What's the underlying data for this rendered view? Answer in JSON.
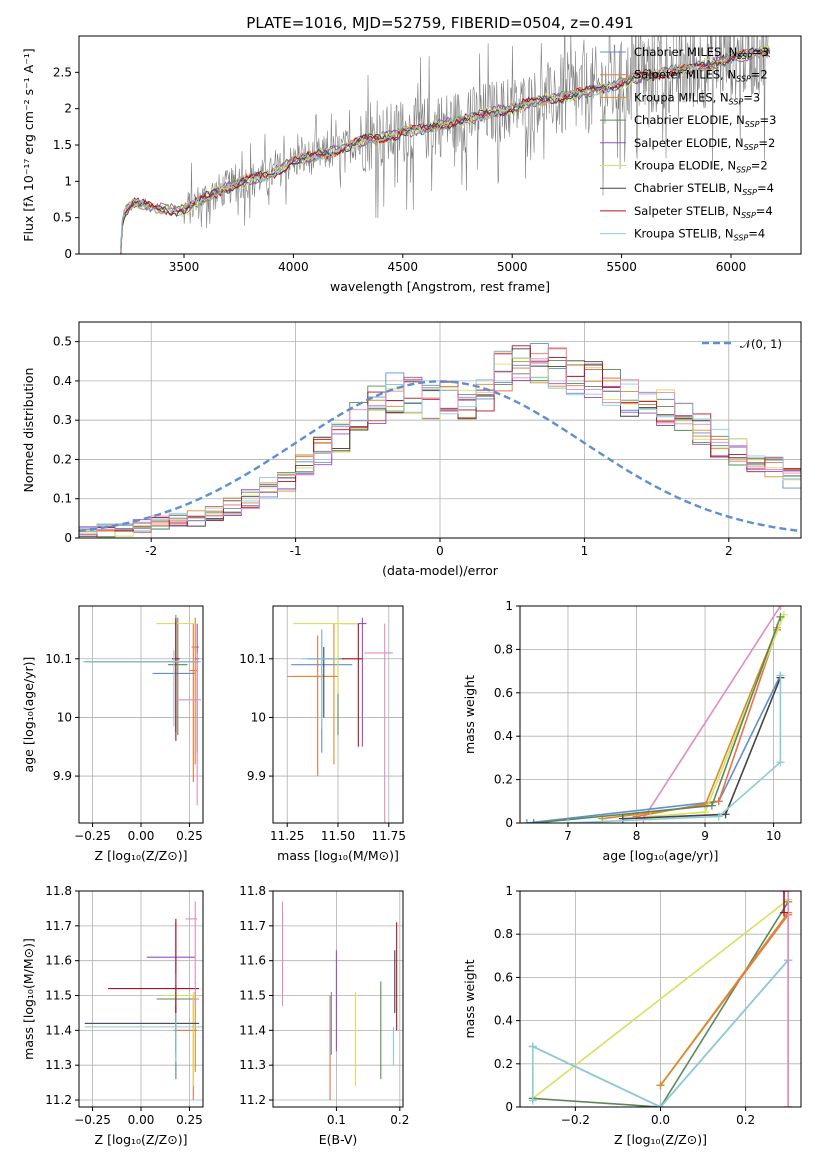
{
  "chart_data": [
    {
      "id": "spectrum",
      "type": "line",
      "title": "PLATE=1016, MJD=52759, FIBERID=0504, z=0.491",
      "xlabel": "wavelength [Angstrom, rest frame]",
      "ylabel": "Flux [fλ 10⁻¹⁷ erg cm⁻² s⁻¹ A⁻¹]",
      "xlim": [
        3020,
        6320
      ],
      "ylim": [
        0,
        3.0
      ],
      "xticks": [
        3500,
        4000,
        4500,
        5000,
        5500,
        6000
      ],
      "yticks": [
        0.0,
        0.5,
        1.0,
        1.5,
        2.0,
        2.5
      ],
      "grid": false,
      "legend_position": "top-right",
      "data_spectrum_color": "#808080",
      "series": [
        {
          "name": "Chabrier MILES, N_SSP=3",
          "color": "#5f8fd0"
        },
        {
          "name": "Salpeter MILES, N_SSP=2",
          "color": "#e8734a"
        },
        {
          "name": "Kroupa MILES, N_SSP=3",
          "color": "#d98c2b"
        },
        {
          "name": "Chabrier ELODIE, N_SSP=3",
          "color": "#5a8a5a"
        },
        {
          "name": "Salpeter ELODIE, N_SSP=2",
          "color": "#9b4fc0"
        },
        {
          "name": "Kroupa ELODIE, N_SSP=2",
          "color": "#d8e060"
        },
        {
          "name": "Chabrier STELIB, N_SSP=4",
          "color": "#444444"
        },
        {
          "name": "Salpeter STELIB, N_SSP=4",
          "color": "#b01020"
        },
        {
          "name": "Kroupa STELIB, N_SSP=4",
          "color": "#8ccbd8"
        }
      ],
      "continuum": {
        "x": [
          3210,
          3220,
          3240,
          3270,
          3300,
          3400,
          3500,
          3600,
          3700,
          3800,
          3900,
          4000,
          4100,
          4200,
          4300,
          4400,
          4500,
          4600,
          4700,
          4800,
          4900,
          5000,
          5100,
          5200,
          5300,
          5400,
          5500,
          5600,
          5700,
          5800,
          5900,
          6000,
          6100,
          6180
        ],
        "y": [
          0.02,
          0.5,
          0.62,
          0.7,
          0.68,
          0.62,
          0.6,
          0.78,
          0.92,
          1.02,
          1.1,
          1.28,
          1.35,
          1.42,
          1.55,
          1.6,
          1.68,
          1.72,
          1.8,
          1.85,
          1.95,
          2.0,
          2.1,
          2.15,
          2.2,
          2.28,
          2.35,
          2.45,
          2.5,
          2.55,
          2.6,
          2.7,
          2.75,
          2.8
        ]
      }
    },
    {
      "id": "residuals",
      "type": "histogram",
      "xlabel": "(data-model)/error",
      "ylabel": "Normed distribution",
      "xlim": [
        -2.5,
        2.5
      ],
      "ylim": [
        0,
        0.55
      ],
      "xticks": [
        -2,
        -1,
        0,
        1,
        2
      ],
      "yticks": [
        0.0,
        0.1,
        0.2,
        0.3,
        0.4,
        0.5
      ],
      "grid": true,
      "legend": "𝒩(0, 1)",
      "legend_position": "top-right",
      "gaussian": {
        "mean": 0,
        "sigma": 1,
        "color": "#5f8fd0"
      },
      "bin_width": 0.125,
      "base_histogram": [
        0.02,
        0.02,
        0.02,
        0.03,
        0.04,
        0.05,
        0.05,
        0.06,
        0.08,
        0.1,
        0.13,
        0.14,
        0.18,
        0.22,
        0.26,
        0.3,
        0.34,
        0.37,
        0.36,
        0.34,
        0.35,
        0.33,
        0.36,
        0.42,
        0.45,
        0.44,
        0.43,
        0.41,
        0.4,
        0.38,
        0.36,
        0.35,
        0.33,
        0.3,
        0.28,
        0.24,
        0.22,
        0.2,
        0.18,
        0.15,
        0.13,
        0.11,
        0.09,
        0.08,
        0.07,
        0.06,
        0.05,
        0.05,
        0.04,
        0.03
      ]
    },
    {
      "id": "age-vs-Z",
      "type": "errorbar",
      "xlabel": "Z [log₁₀(Z/Z⊙)]",
      "ylabel": "age  [log₁₀(age/yr)]",
      "xlim": [
        -0.32,
        0.32
      ],
      "ylim": [
        9.82,
        10.19
      ],
      "xticks": [
        -0.25,
        0.0,
        0.25
      ],
      "xticklabels": [
        "−0.25",
        "0.00",
        "0.25"
      ],
      "yticks": [
        9.9,
        10.0,
        10.1
      ],
      "grid": true,
      "points": [
        {
          "x": 0.18,
          "y": 10.075,
          "xerr": [
            0.12,
            0.1
          ],
          "yerr": [
            0.1,
            0.1
          ],
          "color": "#5f8fd0"
        },
        {
          "x": 0.27,
          "y": 10.08,
          "xerr": [
            0.02,
            0.02
          ],
          "yerr": [
            0.19,
            0.08
          ],
          "color": "#e8734a"
        },
        {
          "x": 0.28,
          "y": 10.12,
          "xerr": [
            0.02,
            0.02
          ],
          "yerr": [
            0.2,
            0.05
          ],
          "color": "#d98c2b"
        },
        {
          "x": 0.19,
          "y": 10.09,
          "xerr": [
            0.05,
            0.05
          ],
          "yerr": [
            0.12,
            0.08
          ],
          "color": "#5a8a5a"
        },
        {
          "x": 0.29,
          "y": 10.1,
          "xerr": [
            0.01,
            0.01
          ],
          "yerr": [
            0.16,
            0.06
          ],
          "color": "#9b4fc0"
        },
        {
          "x": 0.18,
          "y": 10.16,
          "xerr": [
            0.1,
            0.1
          ],
          "yerr": [
            0.05,
            0.01
          ],
          "color": "#d8e060"
        },
        {
          "x": 0.18,
          "y": 10.095,
          "xerr": [
            0.47,
            0.12
          ],
          "yerr": [
            0.12,
            0.07
          ],
          "color": "#444444"
        },
        {
          "x": 0.18,
          "y": 10.1,
          "xerr": [
            0.02,
            0.02
          ],
          "yerr": [
            0.14,
            0.07
          ],
          "color": "#b01020"
        },
        {
          "x": 0.17,
          "y": 10.095,
          "xerr": [
            0.47,
            0.14
          ],
          "yerr": [
            0.11,
            0.02
          ],
          "color": "#8ccbd8"
        },
        {
          "x": 0.29,
          "y": 10.03,
          "xerr": [
            0.1,
            0.02
          ],
          "yerr": [
            0.18,
            0.08
          ],
          "color": "#e38bc0"
        }
      ]
    },
    {
      "id": "age-vs-mass",
      "type": "errorbar",
      "xlabel": "mass [log₁₀(M/M⊙)]",
      "xlim": [
        11.18,
        11.82
      ],
      "ylim": [
        9.82,
        10.19
      ],
      "xticks": [
        11.25,
        11.5,
        11.75
      ],
      "xticklabels": [
        "11.25",
        "11.50",
        "11.75"
      ],
      "yticks": [
        9.9,
        10.0,
        10.1
      ],
      "grid": true,
      "points": [
        {
          "x": 11.42,
          "y": 10.09,
          "xerr": [
            0.15,
            0.15
          ],
          "yerr": [
            0.15,
            0.06
          ],
          "color": "#5f8fd0"
        },
        {
          "x": 11.4,
          "y": 10.07,
          "xerr": [
            0.15,
            0.1
          ],
          "yerr": [
            0.17,
            0.07
          ],
          "color": "#e8734a"
        },
        {
          "x": 11.48,
          "y": 10.07,
          "xerr": [
            0.2,
            0.02
          ],
          "yerr": [
            0.15,
            0.09
          ],
          "color": "#d98c2b"
        },
        {
          "x": 11.5,
          "y": 10.1,
          "xerr": [
            0.03,
            0.03
          ],
          "yerr": [
            0.13,
            0.06
          ],
          "color": "#5a8a5a"
        },
        {
          "x": 11.62,
          "y": 10.16,
          "xerr": [
            0.1,
            0.02
          ],
          "yerr": [
            0.21,
            0.01
          ],
          "color": "#9b4fc0"
        },
        {
          "x": 11.5,
          "y": 10.16,
          "xerr": [
            0.22,
            0.1
          ],
          "yerr": [
            0.12,
            0.01
          ],
          "color": "#d8e060"
        },
        {
          "x": 11.43,
          "y": 10.1,
          "xerr": [
            0.08,
            0.05
          ],
          "yerr": [
            0.1,
            0.02
          ],
          "color": "#444444"
        },
        {
          "x": 11.6,
          "y": 10.1,
          "xerr": [
            0.08,
            0.02
          ],
          "yerr": [
            0.15,
            0.06
          ],
          "color": "#b01020"
        },
        {
          "x": 11.42,
          "y": 10.1,
          "xerr": [
            0.1,
            0.08
          ],
          "yerr": [
            0.12,
            0.05
          ],
          "color": "#8ccbd8"
        },
        {
          "x": 11.73,
          "y": 10.11,
          "xerr": [
            0.1,
            0.04
          ],
          "yerr": [
            0.29,
            0.05
          ],
          "color": "#e38bc0"
        }
      ]
    },
    {
      "id": "weight-vs-age",
      "type": "line",
      "xlabel": "age  [log₁₀(age/yr)]",
      "ylabel": "mass weight",
      "xlim": [
        6.3,
        10.4
      ],
      "ylim": [
        0,
        1.0
      ],
      "xticks": [
        7,
        8,
        9,
        10
      ],
      "yticks": [
        0.0,
        0.2,
        0.4,
        0.6,
        0.8,
        1.0
      ],
      "grid": true,
      "series": [
        {
          "color": "#e38bc0",
          "x": [
            8.1,
            10.1
          ],
          "y": [
            0.02,
            1.0
          ]
        },
        {
          "color": "#5f8fd0",
          "x": [
            6.4,
            9.2,
            10.1
          ],
          "y": [
            0.0,
            0.1,
            0.68
          ]
        },
        {
          "color": "#e8734a",
          "x": [
            8.0,
            9.2,
            10.05
          ],
          "y": [
            0.03,
            0.1,
            0.89
          ]
        },
        {
          "color": "#d98c2b",
          "x": [
            7.5,
            9.0,
            10.05
          ],
          "y": [
            0.02,
            0.08,
            0.9
          ]
        },
        {
          "color": "#d8e060",
          "x": [
            8.2,
            9.0,
            10.15
          ],
          "y": [
            0.03,
            0.05,
            0.96
          ]
        },
        {
          "color": "#5a8a5a",
          "x": [
            6.5,
            9.1,
            10.1
          ],
          "y": [
            0.0,
            0.08,
            0.95
          ]
        },
        {
          "color": "#444444",
          "x": [
            7.8,
            9.3,
            10.1
          ],
          "y": [
            0.02,
            0.04,
            0.67
          ]
        },
        {
          "color": "#8ccbd8",
          "x": [
            7.0,
            9.2,
            10.1,
            10.1
          ],
          "y": [
            0.0,
            0.03,
            0.28,
            0.68
          ]
        }
      ]
    },
    {
      "id": "mass-vs-Z",
      "type": "errorbar",
      "xlabel": "Z [log₁₀(Z/Z⊙)]",
      "ylabel": "mass [log₁₀(M/M⊙)]",
      "xlim": [
        -0.32,
        0.32
      ],
      "ylim": [
        11.18,
        11.8
      ],
      "xticks": [
        -0.25,
        0.0,
        0.25
      ],
      "xticklabels": [
        "−0.25",
        "0.00",
        "0.25"
      ],
      "yticks": [
        11.2,
        11.3,
        11.4,
        11.5,
        11.6,
        11.7,
        11.8
      ],
      "grid": true,
      "points": [
        {
          "x": 0.18,
          "y": 11.42,
          "xerr": [
            0.47,
            0.12
          ],
          "yerr": [
            0.1,
            0.09
          ],
          "color": "#5f8fd0"
        },
        {
          "x": 0.27,
          "y": 11.4,
          "xerr": [
            0.1,
            0.02
          ],
          "yerr": [
            0.2,
            0.1
          ],
          "color": "#e8734a"
        },
        {
          "x": 0.28,
          "y": 11.49,
          "xerr": [
            0.2,
            0.02
          ],
          "yerr": [
            0.21,
            0.02
          ],
          "color": "#d98c2b"
        },
        {
          "x": 0.18,
          "y": 11.49,
          "xerr": [
            0.1,
            0.1
          ],
          "yerr": [
            0.23,
            0.04
          ],
          "color": "#5a8a5a"
        },
        {
          "x": 0.18,
          "y": 11.61,
          "xerr": [
            0.15,
            0.1
          ],
          "yerr": [
            0.05,
            0.1
          ],
          "color": "#9b4fc0"
        },
        {
          "x": 0.27,
          "y": 11.5,
          "xerr": [
            0.15,
            0.03
          ],
          "yerr": [
            0.26,
            0.01
          ],
          "color": "#d8e060"
        },
        {
          "x": 0.18,
          "y": 11.42,
          "xerr": [
            0.47,
            0.12
          ],
          "yerr": [
            0.08,
            0.05
          ],
          "color": "#444444"
        },
        {
          "x": 0.18,
          "y": 11.52,
          "xerr": [
            0.35,
            0.12
          ],
          "yerr": [
            0.1,
            0.2
          ],
          "color": "#b01020"
        },
        {
          "x": 0.18,
          "y": 11.41,
          "xerr": [
            0.47,
            0.14
          ],
          "yerr": [
            0.1,
            0.04
          ],
          "color": "#8ccbd8"
        },
        {
          "x": 0.28,
          "y": 11.72,
          "xerr": [
            0.05,
            0.01
          ],
          "yerr": [
            0.25,
            0.05
          ],
          "color": "#e38bc0"
        }
      ]
    },
    {
      "id": "mass-vs-EBV",
      "type": "errorbar",
      "xlabel": "E(B-V)",
      "xlim": [
        0.0,
        0.205
      ],
      "ylim": [
        11.18,
        11.8
      ],
      "xticks": [
        0.1,
        0.2
      ],
      "xticklabels": [
        "0.1",
        "0.2"
      ],
      "yticks": [
        11.2,
        11.3,
        11.4,
        11.5,
        11.6,
        11.7,
        11.8
      ],
      "grid": true,
      "points": [
        {
          "x": 0.015,
          "y": 11.62,
          "yerr": [
            0.15,
            0.15
          ],
          "color": "#e38bc0"
        },
        {
          "x": 0.09,
          "y": 11.35,
          "yerr": [
            0.15,
            0.15
          ],
          "color": "#e8734a"
        },
        {
          "x": 0.092,
          "y": 11.42,
          "yerr": [
            0.09,
            0.09
          ],
          "color": "#5f8fd0"
        },
        {
          "x": 0.1,
          "y": 11.48,
          "yerr": [
            0.14,
            0.15
          ],
          "color": "#9b4fc0"
        },
        {
          "x": 0.13,
          "y": 11.37,
          "yerr": [
            0.13,
            0.14
          ],
          "color": "#d8e060"
        },
        {
          "x": 0.17,
          "y": 11.4,
          "yerr": [
            0.14,
            0.14
          ],
          "color": "#5a8a5a"
        },
        {
          "x": 0.19,
          "y": 11.36,
          "yerr": [
            0.06,
            0.05
          ],
          "color": "#8ccbd8"
        },
        {
          "x": 0.192,
          "y": 11.5,
          "yerr": [
            0.05,
            0.13
          ],
          "color": "#444444"
        },
        {
          "x": 0.195,
          "y": 11.55,
          "yerr": [
            0.15,
            0.16
          ],
          "color": "#b01020"
        }
      ]
    },
    {
      "id": "weight-vs-Z",
      "type": "line",
      "xlabel": "Z [log₁₀(Z/Z⊙)]",
      "ylabel": "mass weight",
      "xlim": [
        -0.33,
        0.33
      ],
      "ylim": [
        0,
        1.0
      ],
      "xticks": [
        -0.2,
        0.0,
        0.2
      ],
      "xticklabels": [
        "−0.2",
        "0.0",
        "0.2"
      ],
      "yticks": [
        0.0,
        0.2,
        0.4,
        0.6,
        0.8,
        1.0
      ],
      "grid": true,
      "series": [
        {
          "color": "#d8e060",
          "x": [
            -0.3,
            0.3
          ],
          "y": [
            0.04,
            0.96
          ]
        },
        {
          "color": "#5a8a5a",
          "x": [
            -0.3,
            0.0,
            0.3
          ],
          "y": [
            0.04,
            0.0,
            0.95
          ]
        },
        {
          "color": "#e8734a",
          "x": [
            0.0,
            0.3
          ],
          "y": [
            0.1,
            0.89
          ]
        },
        {
          "color": "#d98c2b",
          "x": [
            0.0,
            0.3,
            0.3
          ],
          "y": [
            0.1,
            0.9,
            0.0
          ]
        },
        {
          "color": "#5f8fd0",
          "x": [
            -0.3,
            0.0,
            0.3
          ],
          "y": [
            0.28,
            0.0,
            0.68
          ]
        },
        {
          "color": "#8ccbd8",
          "x": [
            -0.3,
            -0.3,
            0.0,
            0.3
          ],
          "y": [
            0.03,
            0.28,
            0.0,
            0.68
          ]
        },
        {
          "color": "#e38bc0",
          "x": [
            0.3,
            0.3
          ],
          "y": [
            0.0,
            1.0
          ]
        },
        {
          "color": "#b01020",
          "x": [
            0.29,
            0.29
          ],
          "y": [
            0.9,
            1.0
          ]
        }
      ]
    }
  ]
}
